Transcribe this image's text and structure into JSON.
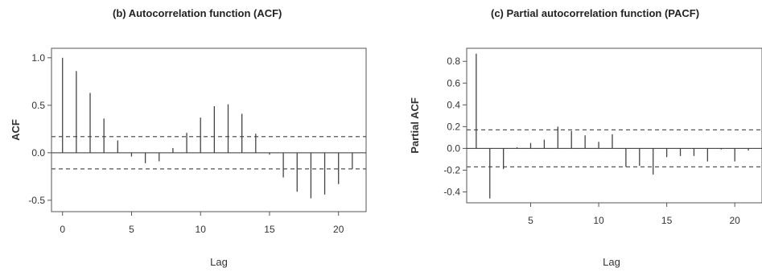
{
  "chart_data": [
    {
      "type": "bar",
      "title": "(b) Autocorrelation function (ACF)",
      "xlabel": "Lag",
      "ylabel": "ACF",
      "xlim": [
        -0.8,
        22
      ],
      "ylim": [
        -0.62,
        1.1
      ],
      "xticks": [
        "0",
        "5",
        "10",
        "15",
        "20"
      ],
      "yticks": [
        "-0.5",
        "0.0",
        "0.5",
        "1.0"
      ],
      "confidence_bounds": [
        0.17,
        -0.17
      ],
      "x": [
        0,
        1,
        2,
        3,
        4,
        5,
        6,
        7,
        8,
        9,
        10,
        11,
        12,
        13,
        14,
        15,
        16,
        17,
        18,
        19,
        20,
        21
      ],
      "values": [
        1.0,
        0.86,
        0.63,
        0.36,
        0.13,
        -0.04,
        -0.11,
        -0.09,
        0.05,
        0.21,
        0.37,
        0.49,
        0.51,
        0.41,
        0.2,
        -0.02,
        -0.26,
        -0.41,
        -0.48,
        -0.44,
        -0.33,
        -0.17
      ]
    },
    {
      "type": "bar",
      "title": "(c) Partial autocorrelation function (PACF)",
      "xlabel": "Lag",
      "ylabel": "Partial ACF",
      "xlim": [
        0.3,
        22
      ],
      "ylim": [
        -0.5,
        0.92
      ],
      "xticks": [
        "5",
        "10",
        "15",
        "20"
      ],
      "yticks": [
        "-0.4",
        "-0.2",
        "0.0",
        "0.2",
        "0.4",
        "0.6",
        "0.8"
      ],
      "confidence_bounds": [
        0.17,
        -0.17
      ],
      "x": [
        1,
        2,
        3,
        4,
        5,
        6,
        7,
        8,
        9,
        10,
        11,
        12,
        13,
        14,
        15,
        16,
        17,
        18,
        19,
        20,
        21
      ],
      "values": [
        0.87,
        -0.46,
        -0.19,
        0.01,
        0.05,
        0.08,
        0.2,
        0.16,
        0.12,
        0.06,
        0.13,
        -0.17,
        -0.16,
        -0.24,
        -0.08,
        -0.07,
        -0.07,
        -0.12,
        -0.01,
        -0.12,
        -0.02
      ]
    }
  ]
}
